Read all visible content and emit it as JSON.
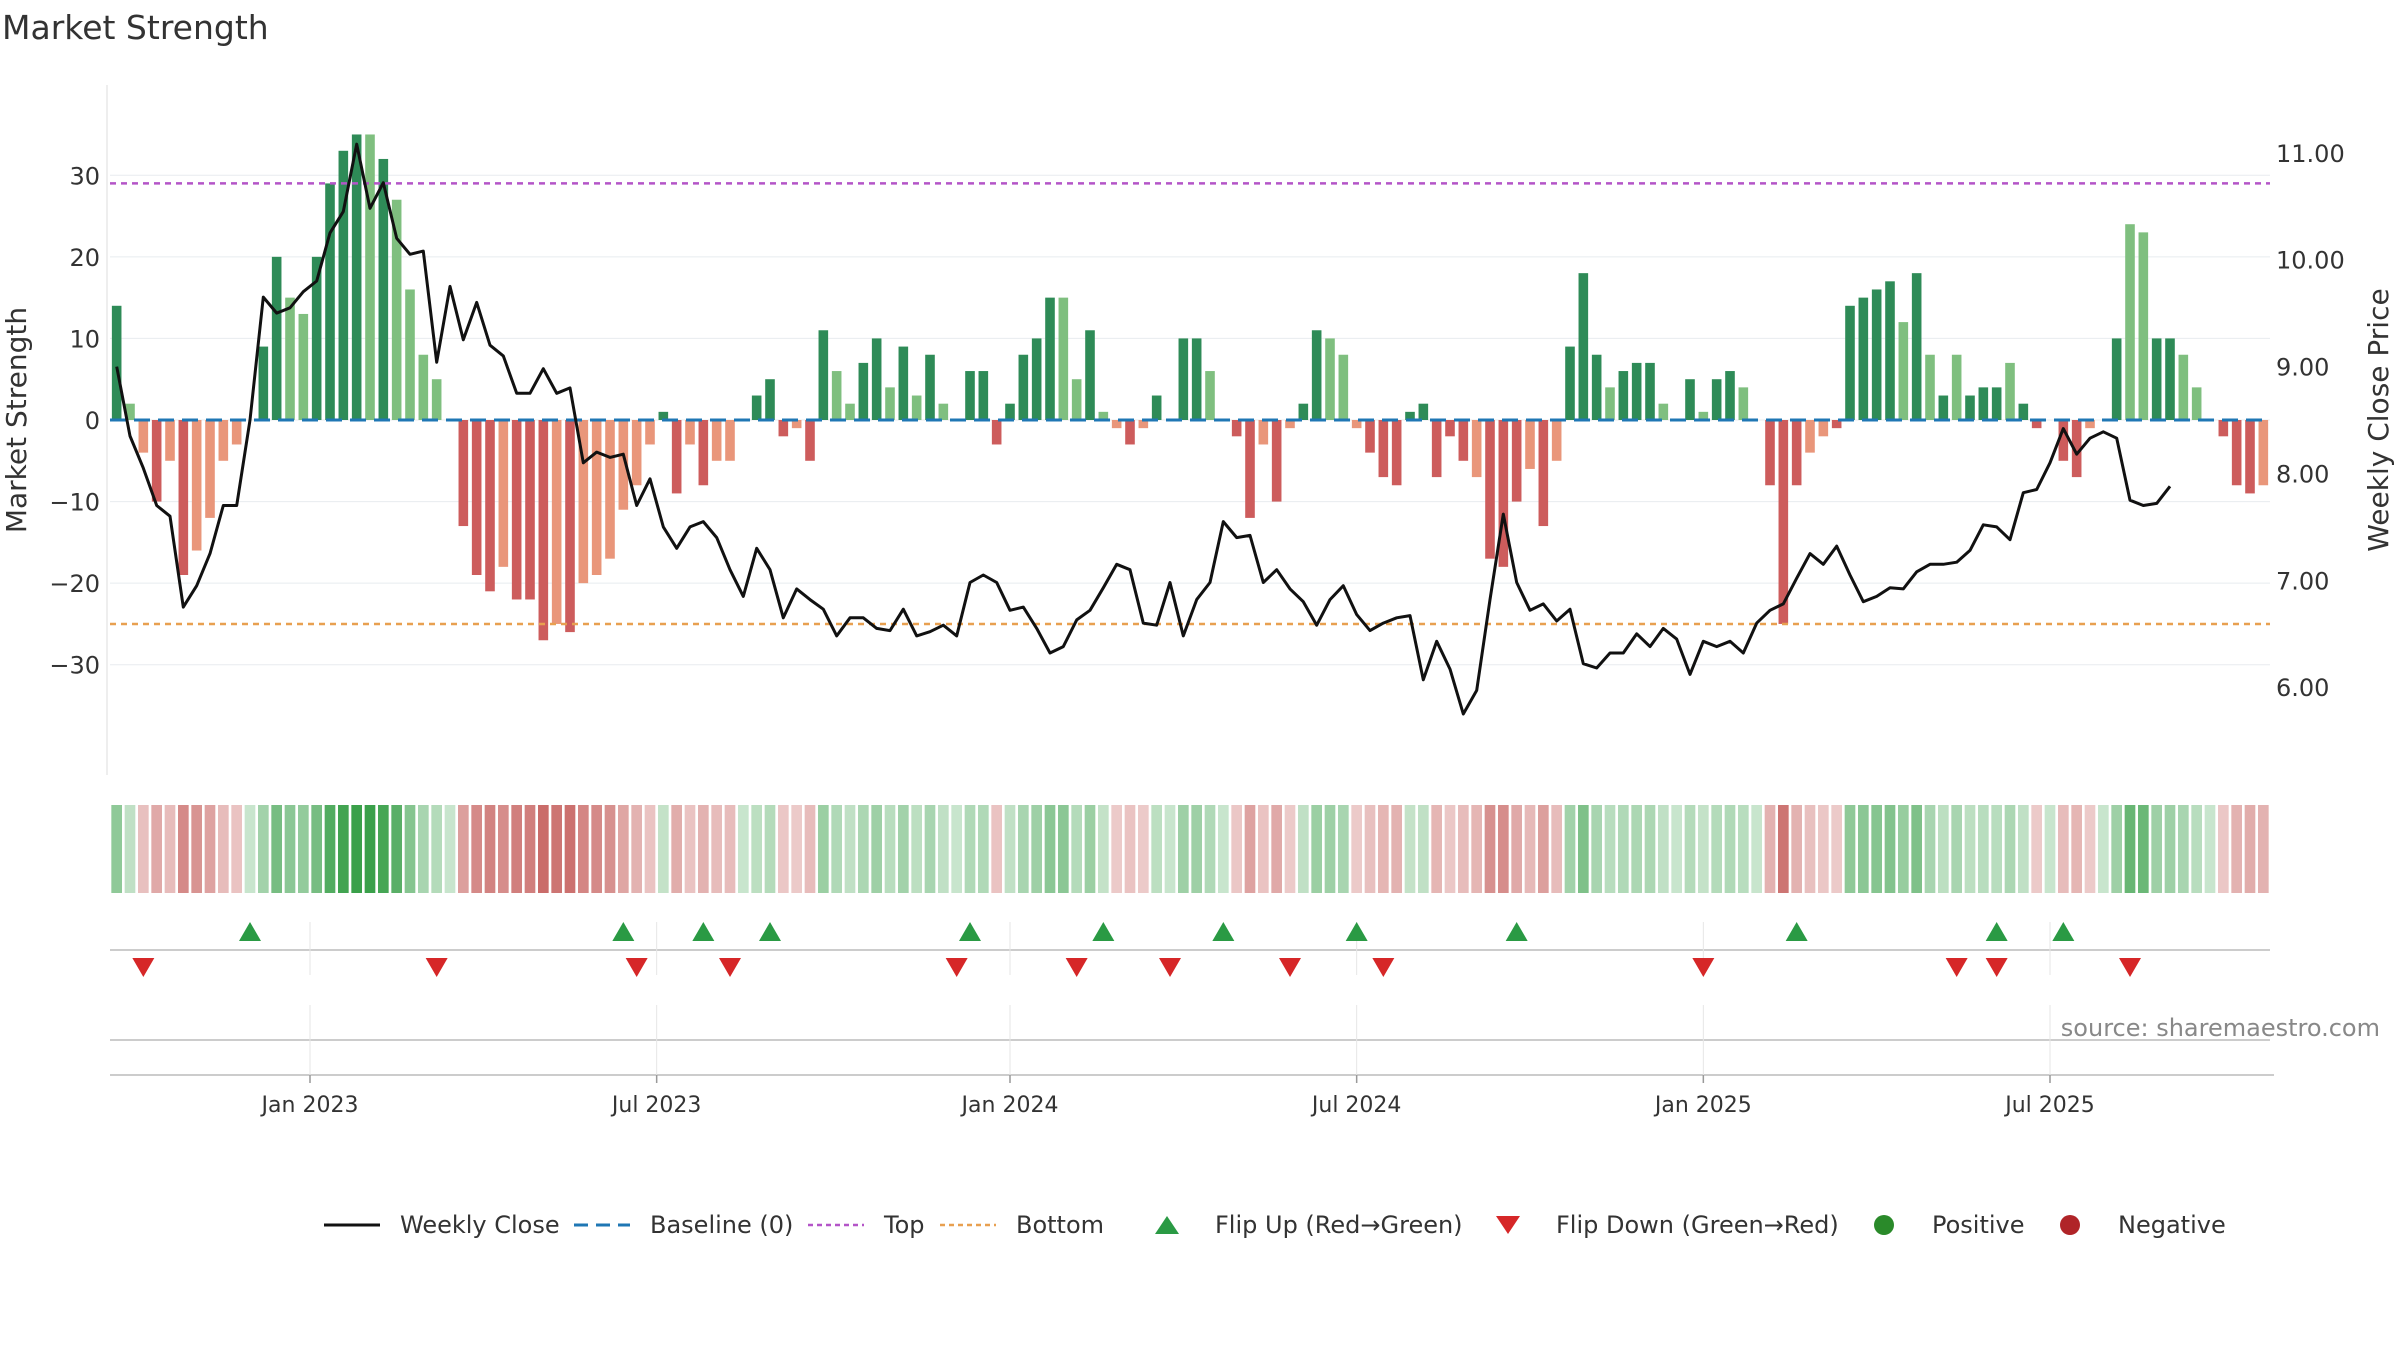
{
  "title": "Market Strength",
  "source": "source: sharemaestro.com",
  "legend": [
    {
      "label": "Weekly Close",
      "kind": "line",
      "color": "#111111"
    },
    {
      "label": "Baseline (0)",
      "kind": "dash",
      "color": "#1f77b4"
    },
    {
      "label": "Top",
      "kind": "dot",
      "color": "#b455c8"
    },
    {
      "label": "Bottom",
      "kind": "dot",
      "color": "#e8a050"
    },
    {
      "label": "Flip Up (Red→Green)",
      "kind": "tri-up",
      "color": "#2a9a44"
    },
    {
      "label": "Flip Down (Green→Red)",
      "kind": "tri-down",
      "color": "#d62728"
    },
    {
      "label": "Positive",
      "kind": "circle",
      "color": "#2a8a2a"
    },
    {
      "label": "Negative",
      "kind": "circle",
      "color": "#b02428"
    }
  ],
  "colors": {
    "pos_dark": "#2e8b57",
    "pos_light": "#7fbf7f",
    "neg_dark": "#cd5c5c",
    "neg_light": "#e9967a",
    "price_line": "#111111",
    "baseline": "#1f77b4",
    "top_line": "#b455c8",
    "bottom_line": "#e8a050",
    "flip_up": "#2a9a44",
    "flip_down": "#d62728",
    "grid": "#e8ecef"
  },
  "chart_data": {
    "type": "bar",
    "ylabel": "Market Strength",
    "y2label": "Weekly Close Price",
    "ylim": [
      -38,
      38
    ],
    "y2lim": [
      5.6,
      11.4
    ],
    "yticks": [
      -30,
      -20,
      -10,
      0,
      10,
      20,
      30
    ],
    "y2ticks": [
      "6.00",
      "7.00",
      "8.00",
      "9.00",
      "10.00",
      "11.00"
    ],
    "top_level": 29,
    "bottom_level": -25,
    "baseline": 0,
    "x_start": "2022-10-07",
    "x_step_days": 7,
    "xticks": [
      {
        "label": "Jan 2023",
        "week": 15
      },
      {
        "label": "Jul 2023",
        "week": 41
      },
      {
        "label": "Jan 2024",
        "week": 67.5
      },
      {
        "label": "Jul 2024",
        "week": 93.5
      },
      {
        "label": "Jan 2025",
        "week": 119.5
      },
      {
        "label": "Jul 2025",
        "week": 145.5
      }
    ],
    "strength": [
      14,
      2,
      -4,
      -10,
      -5,
      -19,
      -16,
      -12,
      -5,
      -3,
      0,
      9,
      20,
      15,
      13,
      20,
      29,
      33,
      35,
      35,
      32,
      27,
      16,
      8,
      5,
      0,
      -13,
      -19,
      -21,
      -18,
      -22,
      -22,
      -27,
      -25,
      -26,
      -20,
      -19,
      -17,
      -11,
      -8,
      -3,
      1,
      -9,
      -3,
      -8,
      -5,
      -5,
      0,
      3,
      5,
      -2,
      -1,
      -5,
      11,
      6,
      2,
      7,
      10,
      4,
      9,
      3,
      8,
      2,
      0,
      6,
      6,
      -3,
      2,
      8,
      10,
      15,
      15,
      5,
      11,
      1,
      -1,
      -3,
      -1,
      3,
      0,
      10,
      10,
      6,
      0,
      -2,
      -12,
      -3,
      -10,
      -1,
      2,
      11,
      10,
      8,
      -1,
      -4,
      -7,
      -8,
      1,
      2,
      -7,
      -2,
      -5,
      -7,
      -17,
      -18,
      -10,
      -6,
      -13,
      -5,
      9,
      18,
      8,
      4,
      6,
      7,
      7,
      2,
      0,
      5,
      1,
      5,
      6,
      4,
      0,
      -8,
      -25,
      -8,
      -4,
      -2,
      -1,
      14,
      15,
      16,
      17,
      12,
      18,
      8,
      3,
      8,
      3,
      4,
      4,
      7,
      2,
      -1,
      0,
      -5,
      -7,
      -1,
      0,
      10,
      24,
      23,
      10,
      10,
      8,
      4,
      0,
      -2,
      -8,
      -9,
      -8
    ],
    "strength_shade": [
      1,
      0,
      0,
      1,
      0,
      1,
      0,
      0,
      0,
      0,
      0,
      1,
      1,
      0,
      0,
      1,
      1,
      1,
      1,
      0,
      1,
      0,
      0,
      0,
      0,
      0,
      1,
      1,
      1,
      0,
      1,
      1,
      1,
      0,
      1,
      0,
      0,
      0,
      0,
      0,
      0,
      1,
      1,
      0,
      1,
      0,
      0,
      0,
      1,
      1,
      1,
      0,
      1,
      1,
      0,
      0,
      1,
      1,
      0,
      1,
      0,
      1,
      0,
      0,
      1,
      1,
      1,
      1,
      1,
      1,
      1,
      0,
      0,
      1,
      0,
      0,
      1,
      0,
      1,
      0,
      1,
      1,
      0,
      0,
      1,
      1,
      0,
      1,
      0,
      1,
      1,
      0,
      0,
      0,
      1,
      1,
      1,
      1,
      1,
      1,
      1,
      1,
      0,
      1,
      1,
      1,
      0,
      1,
      0,
      1,
      1,
      1,
      0,
      1,
      1,
      1,
      0,
      0,
      1,
      0,
      1,
      1,
      0,
      0,
      1,
      1,
      1,
      0,
      0,
      1,
      1,
      1,
      1,
      1,
      0,
      1,
      0,
      1,
      0,
      1,
      1,
      1,
      0,
      1,
      1,
      1,
      1,
      1,
      0,
      1,
      1,
      0,
      0,
      1,
      1,
      0,
      0,
      0,
      1,
      1,
      1
    ],
    "price": [
      9.0,
      8.35,
      8.05,
      7.7,
      7.6,
      6.75,
      6.95,
      7.25,
      7.7,
      7.7,
      8.5,
      9.65,
      9.5,
      9.55,
      9.7,
      9.8,
      10.25,
      10.45,
      11.08,
      10.48,
      10.72,
      10.2,
      10.05,
      10.08,
      9.04,
      9.75,
      9.25,
      9.6,
      9.2,
      9.1,
      8.75,
      8.75,
      8.98,
      8.75,
      8.8,
      8.1,
      8.2,
      8.15,
      8.18,
      7.7,
      7.95,
      7.5,
      7.3,
      7.5,
      7.55,
      7.4,
      7.1,
      6.85,
      7.3,
      7.1,
      6.65,
      6.92,
      6.82,
      6.73,
      6.48,
      6.65,
      6.65,
      6.55,
      6.53,
      6.73,
      6.48,
      6.52,
      6.58,
      6.48,
      6.98,
      7.05,
      6.98,
      6.72,
      6.75,
      6.55,
      6.32,
      6.38,
      6.63,
      6.72,
      6.93,
      7.15,
      7.1,
      6.6,
      6.58,
      6.98,
      6.48,
      6.82,
      6.98,
      7.55,
      7.4,
      7.42,
      6.98,
      7.1,
      6.92,
      6.8,
      6.58,
      6.82,
      6.95,
      6.68,
      6.53,
      6.6,
      6.65,
      6.67,
      6.07,
      6.43,
      6.17,
      5.75,
      5.97,
      6.82,
      7.62,
      6.98,
      6.72,
      6.78,
      6.62,
      6.73,
      6.22,
      6.18,
      6.32,
      6.32,
      6.5,
      6.38,
      6.55,
      6.45,
      6.12,
      6.43,
      6.38,
      6.43,
      6.32,
      6.6,
      6.72,
      6.78,
      7.02,
      7.25,
      7.15,
      7.32,
      7.05,
      6.8,
      6.85,
      6.93,
      6.92,
      7.08,
      7.15,
      7.15,
      7.17,
      7.28,
      7.52,
      7.5,
      7.38,
      7.82,
      7.85,
      8.1,
      8.42,
      8.18,
      8.33,
      8.39,
      8.33,
      7.75,
      7.7,
      7.72,
      7.88
    ],
    "flip_up": [
      10,
      38,
      44,
      49,
      64,
      74,
      83,
      93,
      105,
      126,
      141,
      146
    ],
    "flip_down": [
      2,
      24,
      39,
      46,
      63,
      72,
      79,
      88,
      95,
      119,
      138,
      141,
      151
    ]
  }
}
